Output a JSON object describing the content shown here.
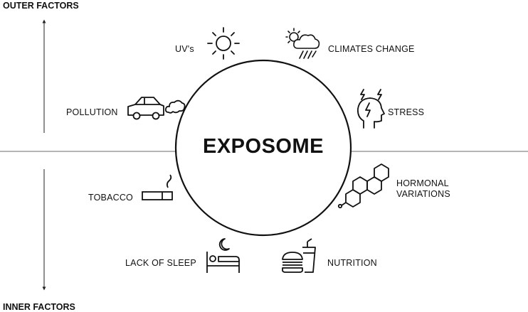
{
  "top_label": "OUTER FACTORS",
  "bottom_label": "INNER FACTORS",
  "center_title": "EXPOSOME",
  "factors": {
    "uv": "UV's",
    "climate": "CLIMATES CHANGE",
    "pollution": "POLLUTION",
    "stress": "STRESS",
    "tobacco": "TOBACCO",
    "hormonal_line1": "HORMONAL",
    "hormonal_line2": "VARIATIONS",
    "sleep": "LACK OF SLEEP",
    "nutrition": "NUTRITION"
  },
  "icons": [
    "sun-icon",
    "weather-icon",
    "car-icon",
    "head-stress-icon",
    "cigarette-icon",
    "molecule-icon",
    "bed-moon-icon",
    "food-drink-icon"
  ]
}
